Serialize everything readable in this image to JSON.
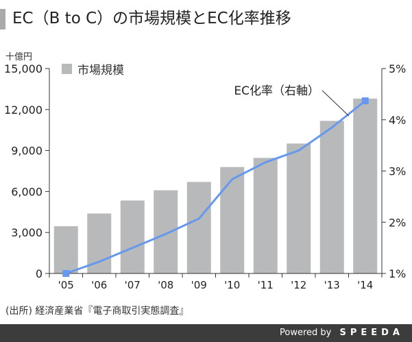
{
  "title": "EC（B to C）の市場規模とEC化率推移",
  "source": "(出所) 経済産業省『電子商取引実態調査』",
  "footer": {
    "powered": "Powered by",
    "brand": "SPEEDA"
  },
  "chart_data": {
    "type": "bar",
    "categories": [
      "'05",
      "'06",
      "'07",
      "'08",
      "'09",
      "'10",
      "'11",
      "'12",
      "'13",
      "'14"
    ],
    "y_left_unit": "十億円",
    "ylim_left": [
      0,
      15000
    ],
    "y_left_ticks": [
      "0",
      "3,000",
      "6,000",
      "9,000",
      "12,000",
      "15,000"
    ],
    "ylim_right": [
      1,
      5
    ],
    "y_right_ticks": [
      "1%",
      "2%",
      "3%",
      "4%",
      "5%"
    ],
    "series": [
      {
        "name": "市場規模",
        "type": "bar",
        "axis": "left",
        "color": "#b7b9bb",
        "values": [
          3460,
          4390,
          5340,
          6090,
          6700,
          7790,
          8460,
          9510,
          11170,
          12800
        ]
      },
      {
        "name": "EC化率（右軸）",
        "type": "line",
        "axis": "right",
        "color": "#6699ee",
        "values": [
          1.0,
          1.23,
          1.5,
          1.77,
          2.07,
          2.84,
          3.17,
          3.4,
          3.85,
          4.37
        ]
      }
    ]
  }
}
